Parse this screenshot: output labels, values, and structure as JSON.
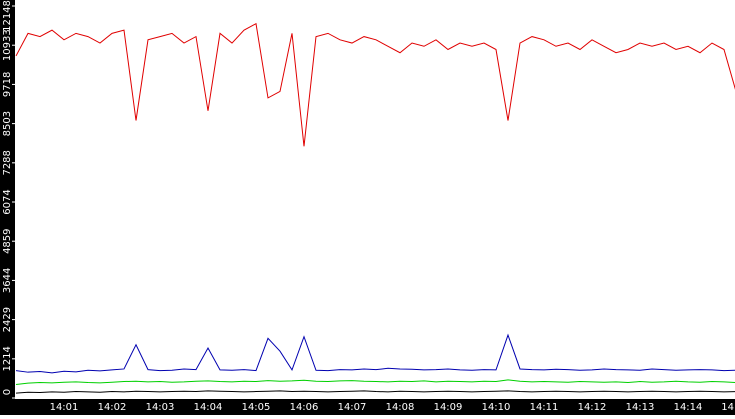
{
  "chart_data": {
    "type": "line",
    "categories": [
      null,
      null,
      null,
      null,
      "14:01",
      null,
      null,
      null,
      "14:02",
      null,
      null,
      null,
      "14:03",
      null,
      null,
      null,
      "14:04",
      null,
      null,
      null,
      "14:05",
      null,
      null,
      null,
      "14:06",
      null,
      null,
      null,
      "14:07",
      null,
      null,
      null,
      "14:08",
      null,
      null,
      null,
      "14:09",
      null,
      null,
      null,
      "14:10",
      null,
      null,
      null,
      "14:11",
      null,
      null,
      null,
      "14:12",
      null,
      null,
      null,
      "14:13",
      null,
      null,
      null,
      "14:14",
      null,
      null,
      null,
      "14"
    ],
    "series": [
      {
        "color": "#e00000",
        "values": [
          10600,
          11300,
          11200,
          11400,
          11100,
          11300,
          11200,
          11000,
          11300,
          11400,
          8600,
          11100,
          11200,
          11300,
          11000,
          11200,
          8900,
          11300,
          11000,
          11400,
          11600,
          9300,
          9500,
          11300,
          7800,
          11200,
          11300,
          11100,
          11000,
          11200,
          11100,
          10900,
          10700,
          11000,
          10900,
          11100,
          10800,
          11000,
          10900,
          11000,
          10800,
          8600,
          11000,
          11200,
          11100,
          10900,
          11000,
          10800,
          11100,
          10900,
          10700,
          10800,
          11000,
          10900,
          11000,
          10800,
          10900,
          10700,
          11000,
          10800,
          9500
        ]
      },
      {
        "color": "#0000b0",
        "values": [
          850,
          800,
          820,
          780,
          830,
          810,
          860,
          840,
          870,
          900,
          1650,
          880,
          850,
          860,
          900,
          880,
          1550,
          870,
          860,
          880,
          850,
          1850,
          1450,
          870,
          1900,
          860,
          850,
          880,
          870,
          900,
          880,
          920,
          900,
          890,
          870,
          880,
          900,
          870,
          860,
          880,
          870,
          1950,
          900,
          880,
          870,
          890,
          880,
          860,
          870,
          900,
          880,
          870,
          860,
          900,
          880,
          860,
          870,
          880,
          870,
          850,
          860
        ]
      },
      {
        "color": "#00d000",
        "values": [
          420,
          460,
          480,
          470,
          490,
          500,
          480,
          470,
          490,
          510,
          520,
          500,
          510,
          490,
          500,
          520,
          530,
          510,
          500,
          520,
          510,
          540,
          520,
          530,
          550,
          520,
          510,
          530,
          540,
          520,
          510,
          500,
          520,
          510,
          530,
          500,
          520,
          510,
          500,
          520,
          510,
          560,
          520,
          500,
          510,
          500,
          490,
          510,
          500,
          490,
          500,
          480,
          510,
          490,
          500,
          520,
          500,
          490,
          510,
          500,
          480
        ]
      },
      {
        "color": "#000000",
        "values": [
          150,
          180,
          170,
          190,
          180,
          200,
          190,
          180,
          200,
          190,
          210,
          200,
          190,
          200,
          210,
          200,
          220,
          210,
          200,
          190,
          200,
          210,
          220,
          200,
          210,
          200,
          190,
          200,
          210,
          220,
          200,
          190,
          210,
          200,
          190,
          200,
          210,
          200,
          190,
          200,
          210,
          220,
          200,
          190,
          200,
          210,
          200,
          190,
          200,
          210,
          200,
          190,
          200,
          210,
          200,
          190,
          200,
          210,
          200,
          190,
          200
        ]
      }
    ],
    "ylim": [
      0,
      12148
    ],
    "yticks": [
      0,
      1214,
      2429,
      3644,
      4859,
      6074,
      7288,
      8503,
      9718,
      10933,
      12148
    ]
  }
}
